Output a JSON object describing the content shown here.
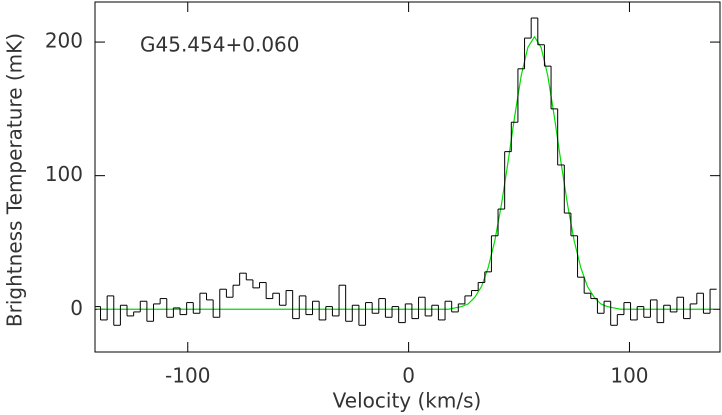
{
  "chart_data": {
    "type": "step-spectrum",
    "annotation": "G45.454+0.060",
    "x_label": "Velocity (km/s)",
    "y_label": "Brightness Temperature (mK)",
    "xlim": [
      -142,
      141
    ],
    "ylim": [
      -32,
      230
    ],
    "xticks": [
      -100,
      0,
      100
    ],
    "yticks": [
      0,
      100,
      200
    ],
    "x": [
      -141,
      -138,
      -135,
      -132,
      -129,
      -126,
      -123,
      -120,
      -117,
      -114,
      -111,
      -108,
      -105,
      -102,
      -99,
      -96,
      -93,
      -90,
      -87,
      -84,
      -81,
      -78,
      -75,
      -72,
      -69,
      -66,
      -63,
      -60,
      -57,
      -54,
      -51,
      -48,
      -45,
      -42,
      -39,
      -36,
      -33,
      -30,
      -27,
      -24,
      -21,
      -18,
      -15,
      -12,
      -9,
      -6,
      -3,
      0,
      3,
      6,
      9,
      12,
      15,
      18,
      21,
      24,
      27,
      30,
      33,
      36,
      39,
      42,
      45,
      48,
      51,
      54,
      57,
      60,
      63,
      66,
      69,
      72,
      75,
      78,
      81,
      84,
      87,
      90,
      93,
      96,
      99,
      102,
      105,
      108,
      111,
      114,
      117,
      120,
      123,
      126,
      129,
      132,
      135,
      138
    ],
    "series": [
      {
        "color": "#000000",
        "values": [
          2,
          -8,
          10,
          -12,
          3,
          -5,
          -2,
          6,
          -9,
          4,
          8,
          -6,
          1,
          -4,
          5,
          -3,
          12,
          7,
          -6,
          15,
          9,
          18,
          27,
          22,
          16,
          20,
          8,
          12,
          3,
          14,
          -7,
          10,
          -4,
          6,
          -8,
          2,
          -5,
          18,
          -9,
          3,
          -12,
          5,
          -3,
          8,
          -6,
          2,
          -10,
          4,
          -7,
          9,
          -5,
          3,
          -8,
          6,
          -2,
          4,
          10,
          14,
          20,
          28,
          55,
          75,
          118,
          140,
          180,
          203,
          218,
          198,
          182,
          150,
          108,
          72,
          55,
          24,
          12,
          8,
          -3,
          6,
          -12,
          -4,
          5,
          -8,
          2,
          -6,
          7,
          -10,
          3,
          -2,
          9,
          -7,
          4,
          12,
          -3,
          15
        ]
      },
      {
        "color": "#00dd00",
        "values": [
          0,
          0,
          0,
          0,
          0,
          0,
          0,
          0,
          0,
          0,
          0,
          0,
          0,
          0,
          0,
          0,
          0,
          0,
          0,
          0,
          0,
          0,
          0,
          0,
          0,
          0,
          0,
          0,
          0,
          0,
          0,
          0,
          0,
          0,
          0,
          0,
          0,
          0,
          0,
          0,
          0,
          0,
          0,
          0,
          0,
          0,
          0,
          0,
          0,
          0,
          0,
          0,
          0,
          0,
          1,
          2,
          4,
          9,
          17,
          31,
          51,
          78,
          110,
          144,
          175,
          196,
          204,
          196,
          175,
          144,
          110,
          78,
          51,
          31,
          17,
          9,
          4,
          2,
          1,
          0,
          0,
          0,
          0,
          0,
          0,
          0,
          0,
          0,
          0,
          0,
          0,
          0,
          0,
          0
        ]
      }
    ]
  }
}
